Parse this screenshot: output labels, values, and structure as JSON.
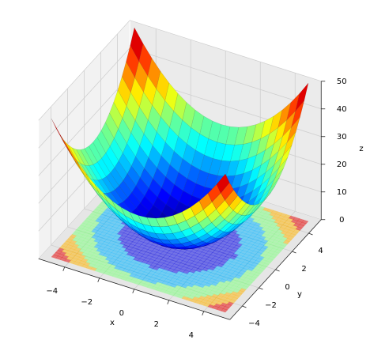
{
  "chart_data": {
    "type": "surface3d",
    "colormap": "jet",
    "contour_levels": [
      0,
      10,
      20,
      30,
      40,
      50
    ],
    "xlabel": "x",
    "ylabel": "y",
    "zlabel": "z",
    "xlim": [
      -5.5,
      5.5
    ],
    "ylim": [
      -5.5,
      5.5
    ],
    "zlim": [
      0,
      50
    ],
    "xticks": [
      {
        "value": -4,
        "label": "−4"
      },
      {
        "value": -2,
        "label": "−2"
      },
      0,
      2,
      4
    ],
    "yticks": [
      {
        "value": -4,
        "label": "−4"
      },
      {
        "value": -2,
        "label": "−2"
      },
      0,
      2,
      4
    ],
    "zticks": [
      0,
      10,
      20,
      30,
      40,
      50
    ],
    "grid": true,
    "x": [
      -5,
      -4.5,
      -4,
      -3.5,
      -3,
      -2.5,
      -2,
      -1.5,
      -1,
      -0.5,
      0,
      0.5,
      1,
      1.5,
      2,
      2.5,
      3,
      3.5,
      4,
      4.5,
      5
    ],
    "y": [
      -5,
      -4.5,
      -4,
      -3.5,
      -3,
      -2.5,
      -2,
      -1.5,
      -1,
      -0.5,
      0,
      0.5,
      1,
      1.5,
      2,
      2.5,
      3,
      3.5,
      4,
      4.5,
      5
    ],
    "z": [
      [
        50,
        45.25,
        41,
        37.25,
        34,
        31.25,
        29,
        27.25,
        26,
        25.25,
        25,
        25.25,
        26,
        27.25,
        29,
        31.25,
        34,
        37.25,
        41,
        45.25,
        50
      ],
      [
        45.25,
        40.5,
        36.25,
        32.5,
        29.25,
        26.5,
        24.25,
        22.5,
        21.25,
        20.5,
        20.25,
        20.5,
        21.25,
        22.5,
        24.25,
        26.5,
        29.25,
        32.5,
        36.25,
        40.5,
        45.25
      ],
      [
        41,
        36.25,
        32,
        28.25,
        25,
        22.25,
        20,
        18.25,
        17,
        16.25,
        16,
        16.25,
        17,
        18.25,
        20,
        22.25,
        25,
        28.25,
        32,
        36.25,
        41
      ],
      [
        37.25,
        32.5,
        28.25,
        24.5,
        21.25,
        18.5,
        16.25,
        14.5,
        13.25,
        12.5,
        12.25,
        12.5,
        13.25,
        14.5,
        16.25,
        18.5,
        21.25,
        24.5,
        28.25,
        32.5,
        37.25
      ],
      [
        34,
        29.25,
        25,
        21.25,
        18,
        15.25,
        13,
        11.25,
        10,
        9.25,
        9,
        9.25,
        10,
        11.25,
        13,
        15.25,
        18,
        21.25,
        25,
        29.25,
        34
      ],
      [
        31.25,
        26.5,
        22.25,
        18.5,
        15.25,
        12.5,
        10.25,
        8.5,
        7.25,
        6.5,
        6.25,
        6.5,
        7.25,
        8.5,
        10.25,
        12.5,
        15.25,
        18.5,
        22.25,
        26.5,
        31.25
      ],
      [
        29,
        24.25,
        20,
        16.25,
        13,
        10.25,
        8,
        6.25,
        5,
        4.25,
        4,
        4.25,
        5,
        6.25,
        8,
        10.25,
        13,
        16.25,
        20,
        24.25,
        29
      ],
      [
        27.25,
        22.5,
        18.25,
        14.5,
        11.25,
        8.5,
        6.25,
        4.5,
        3.25,
        2.5,
        2.25,
        2.5,
        3.25,
        4.5,
        6.25,
        8.5,
        11.25,
        14.5,
        18.25,
        22.5,
        27.25
      ],
      [
        26,
        21.25,
        17,
        13.25,
        10,
        7.25,
        5,
        3.25,
        2,
        1.25,
        1,
        1.25,
        2,
        3.25,
        5,
        7.25,
        10,
        13.25,
        17,
        21.25,
        26
      ],
      [
        25.25,
        20.5,
        16.25,
        12.5,
        9.25,
        6.5,
        4.25,
        2.5,
        1.25,
        0.5,
        0.25,
        0.5,
        1.25,
        2.5,
        4.25,
        6.5,
        9.25,
        12.5,
        16.25,
        20.5,
        25.25
      ],
      [
        25,
        20.25,
        16,
        12.25,
        9,
        6.25,
        4,
        2.25,
        1,
        0.25,
        0,
        0.25,
        1,
        2.25,
        4,
        6.25,
        9,
        12.25,
        16,
        20.25,
        25
      ],
      [
        25.25,
        20.5,
        16.25,
        12.5,
        9.25,
        6.5,
        4.25,
        2.5,
        1.25,
        0.5,
        0.25,
        0.5,
        1.25,
        2.5,
        4.25,
        6.5,
        9.25,
        12.5,
        16.25,
        20.5,
        25.25
      ],
      [
        26,
        21.25,
        17,
        13.25,
        10,
        7.25,
        5,
        3.25,
        2,
        1.25,
        1,
        1.25,
        2,
        3.25,
        5,
        7.25,
        10,
        13.25,
        17,
        21.25,
        26
      ],
      [
        27.25,
        22.5,
        18.25,
        14.5,
        11.25,
        8.5,
        6.25,
        4.5,
        3.25,
        2.5,
        2.25,
        2.5,
        3.25,
        4.5,
        6.25,
        8.5,
        11.25,
        14.5,
        18.25,
        22.5,
        27.25
      ],
      [
        29,
        24.25,
        20,
        16.25,
        13,
        10.25,
        8,
        6.25,
        5,
        4.25,
        4,
        4.25,
        5,
        6.25,
        8,
        10.25,
        13,
        16.25,
        20,
        24.25,
        29
      ],
      [
        31.25,
        26.5,
        22.25,
        18.5,
        15.25,
        12.5,
        10.25,
        8.5,
        7.25,
        6.5,
        6.25,
        6.5,
        7.25,
        8.5,
        10.25,
        12.5,
        15.25,
        18.5,
        22.25,
        26.5,
        31.25
      ],
      [
        34,
        29.25,
        25,
        21.25,
        18,
        15.25,
        13,
        11.25,
        10,
        9.25,
        9,
        9.25,
        10,
        11.25,
        13,
        15.25,
        18,
        21.25,
        25,
        29.25,
        34
      ],
      [
        37.25,
        32.5,
        28.25,
        24.5,
        21.25,
        18.5,
        16.25,
        14.5,
        13.25,
        12.5,
        12.25,
        12.5,
        13.25,
        14.5,
        16.25,
        18.5,
        21.25,
        24.5,
        28.25,
        32.5,
        37.25
      ],
      [
        41,
        36.25,
        32,
        28.25,
        25,
        22.25,
        20,
        18.25,
        17,
        16.25,
        16,
        16.25,
        17,
        18.25,
        20,
        22.25,
        25,
        28.25,
        32,
        36.25,
        41
      ],
      [
        45.25,
        40.5,
        36.25,
        32.5,
        29.25,
        26.5,
        24.25,
        22.5,
        21.25,
        20.5,
        20.25,
        20.5,
        21.25,
        22.5,
        24.25,
        26.5,
        29.25,
        32.5,
        36.25,
        40.5,
        45.25
      ],
      [
        50,
        45.25,
        41,
        37.25,
        34,
        31.25,
        29,
        27.25,
        26,
        25.25,
        25,
        25.25,
        26,
        27.25,
        29,
        31.25,
        34,
        37.25,
        41,
        45.25,
        50
      ]
    ]
  }
}
